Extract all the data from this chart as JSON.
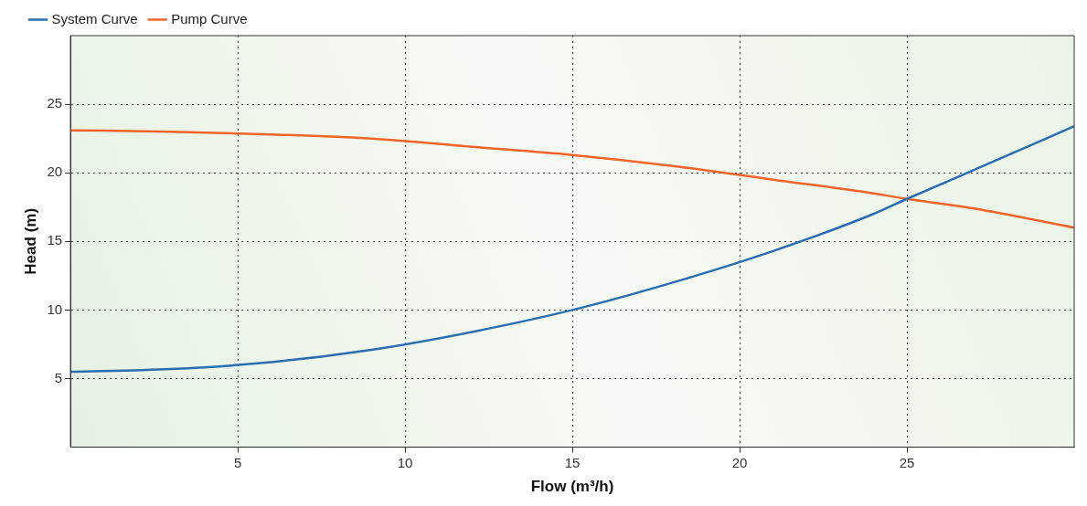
{
  "chart_data": {
    "type": "line",
    "xlabel": "Flow (m³/h)",
    "ylabel": "Head (m)",
    "xlim": [
      0,
      30
    ],
    "ylim": [
      0,
      30
    ],
    "xticks": [
      5,
      10,
      15,
      20,
      25
    ],
    "yticks": [
      5,
      10,
      15,
      20,
      25
    ],
    "grid": true,
    "legend": "top left",
    "marker": "none",
    "line_style": "solid",
    "series": [
      {
        "name": "System Curve",
        "color": "#2a6db0",
        "x": [
          0,
          3,
          6,
          9,
          12,
          15,
          18,
          21,
          24,
          25,
          27,
          30
        ],
        "values": [
          5.5,
          5.7,
          6.2,
          7.1,
          8.4,
          10,
          12,
          14.3,
          17,
          18.1,
          20.2,
          23.4
        ]
      },
      {
        "name": "Pump Curve",
        "color": "#f2642a",
        "x": [
          0,
          3,
          6,
          9,
          12,
          15,
          18,
          21,
          24,
          25,
          27,
          30
        ],
        "values": [
          23.1,
          23,
          22.8,
          22.5,
          21.9,
          21.3,
          20.5,
          19.5,
          18.5,
          18.1,
          17.4,
          16
        ]
      }
    ]
  }
}
